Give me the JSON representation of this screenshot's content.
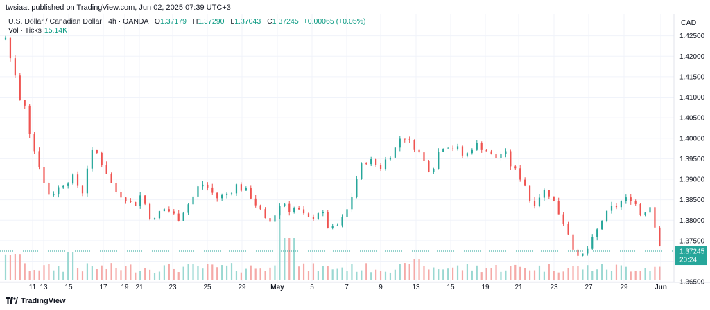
{
  "header": {
    "publish_line": "twsiaat published on TradingView.com, Jun 02, 2025 07:39 UTC+3"
  },
  "legend": {
    "symbol": "U.S. Dollar / Canadian Dollar · 4h · OANDA",
    "o_label": "O",
    "o_value": "1.37179",
    "h_label": "H",
    "h_value": "1.37290",
    "l_label": "L",
    "l_value": "1.37043",
    "c_label": "C",
    "c_value": "1.37245",
    "change": "+0.00065 (+0.05%)",
    "vol_label": "Vol · Ticks",
    "vol_value": "15.14K"
  },
  "price_axis": {
    "currency": "CAD",
    "last_price": "1.37245",
    "countdown": "20:24"
  },
  "footer": {
    "brand": "TradingView"
  },
  "colors": {
    "up": "#26a69a",
    "down": "#ef5350",
    "up_vol": "#9ad8d2",
    "down_vol": "#f5a9a7",
    "grid": "#f0f3fa",
    "last": "#26a69a"
  },
  "chart_data": {
    "type": "candlestick",
    "symbol": "USDCAD",
    "timeframe": "4h",
    "ylim": [
      1.3625,
      1.43
    ],
    "y_ticks": [
      "1.42500",
      "1.42000",
      "1.41500",
      "1.41000",
      "1.40500",
      "1.40000",
      "1.39500",
      "1.39000",
      "1.38500",
      "1.38000",
      "1.37500",
      "1.37000",
      "1.36500"
    ],
    "x_ticks": [
      "11",
      "13",
      "15",
      "17",
      "19",
      "21",
      "23",
      "25",
      "29",
      "May",
      "5",
      "7",
      "9",
      "13",
      "15",
      "19",
      "21",
      "23",
      "27",
      "29",
      "Jun"
    ],
    "close_path": [
      [
        0,
        1.4245
      ],
      [
        3,
        1.4195
      ],
      [
        5,
        1.4185
      ],
      [
        8,
        1.41
      ],
      [
        10,
        1.4095
      ],
      [
        12,
        1.4085
      ],
      [
        14,
        1.4035
      ],
      [
        17,
        1.398
      ],
      [
        20,
        1.395
      ],
      [
        22,
        1.392
      ],
      [
        25,
        1.3875
      ],
      [
        28,
        1.386
      ],
      [
        32,
        1.3875
      ],
      [
        36,
        1.389
      ],
      [
        40,
        1.39
      ],
      [
        43,
        1.3905
      ],
      [
        46,
        1.3875
      ],
      [
        48,
        1.387
      ],
      [
        52,
        1.395
      ],
      [
        55,
        1.397
      ],
      [
        58,
        1.396
      ],
      [
        61,
        1.393
      ],
      [
        64,
        1.391
      ],
      [
        67,
        1.388
      ],
      [
        70,
        1.3865
      ],
      [
        74,
        1.386
      ],
      [
        77,
        1.3845
      ],
      [
        80,
        1.3835
      ],
      [
        84,
        1.386
      ],
      [
        87,
        1.384
      ],
      [
        90,
        1.381
      ],
      [
        93,
        1.38
      ],
      [
        96,
        1.382
      ],
      [
        100,
        1.383
      ],
      [
        104,
        1.3815
      ],
      [
        108,
        1.3805
      ],
      [
        112,
        1.383
      ],
      [
        116,
        1.385
      ],
      [
        120,
        1.388
      ],
      [
        124,
        1.389
      ],
      [
        128,
        1.387
      ],
      [
        132,
        1.3855
      ],
      [
        136,
        1.386
      ],
      [
        140,
        1.387
      ],
      [
        144,
        1.3885
      ],
      [
        148,
        1.3875
      ],
      [
        152,
        1.3865
      ],
      [
        156,
        1.384
      ],
      [
        160,
        1.3815
      ],
      [
        163,
        1.379
      ],
      [
        166,
        1.38
      ],
      [
        170,
        1.383
      ],
      [
        173,
        1.385
      ],
      [
        176,
        1.3825
      ],
      [
        180,
        1.383
      ],
      [
        184,
        1.382
      ],
      [
        188,
        1.38
      ],
      [
        192,
        1.381
      ],
      [
        196,
        1.3825
      ],
      [
        199,
        1.3805
      ],
      [
        202,
        1.3775
      ],
      [
        205,
        1.378
      ],
      [
        208,
        1.379
      ],
      [
        212,
        1.3815
      ],
      [
        215,
        1.3845
      ],
      [
        218,
        1.389
      ],
      [
        221,
        1.3925
      ],
      [
        224,
        1.3945
      ],
      [
        227,
        1.3945
      ],
      [
        230,
        1.394
      ],
      [
        233,
        1.3925
      ],
      [
        236,
        1.394
      ],
      [
        239,
        1.396
      ],
      [
        242,
        1.3965
      ],
      [
        245,
        1.3995
      ],
      [
        248,
        1.401
      ],
      [
        251,
        1.399
      ],
      [
        254,
        1.3985
      ],
      [
        257,
        1.397
      ],
      [
        260,
        1.395
      ],
      [
        263,
        1.393
      ],
      [
        266,
        1.392
      ],
      [
        269,
        1.396
      ],
      [
        272,
        1.398
      ],
      [
        275,
        1.3985
      ],
      [
        278,
        1.3975
      ],
      [
        281,
        1.398
      ],
      [
        284,
        1.396
      ],
      [
        287,
        1.3955
      ],
      [
        290,
        1.3975
      ],
      [
        293,
        1.3985
      ],
      [
        296,
        1.398
      ],
      [
        299,
        1.3975
      ],
      [
        302,
        1.396
      ],
      [
        305,
        1.395
      ],
      [
        308,
        1.396
      ],
      [
        311,
        1.397
      ],
      [
        314,
        1.394
      ],
      [
        317,
        1.3925
      ],
      [
        320,
        1.391
      ],
      [
        323,
        1.3895
      ],
      [
        326,
        1.387
      ],
      [
        328,
        1.383
      ],
      [
        331,
        1.385
      ],
      [
        334,
        1.3865
      ],
      [
        337,
        1.3875
      ],
      [
        340,
        1.386
      ],
      [
        343,
        1.3835
      ],
      [
        346,
        1.381
      ],
      [
        349,
        1.379
      ],
      [
        352,
        1.376
      ],
      [
        355,
        1.3725
      ],
      [
        357,
        1.3705
      ],
      [
        360,
        1.3715
      ],
      [
        363,
        1.373
      ],
      [
        366,
        1.375
      ],
      [
        369,
        1.3775
      ],
      [
        372,
        1.38
      ],
      [
        375,
        1.3815
      ],
      [
        378,
        1.383
      ],
      [
        381,
        1.3835
      ],
      [
        384,
        1.3845
      ],
      [
        387,
        1.385
      ],
      [
        390,
        1.3855
      ],
      [
        393,
        1.384
      ],
      [
        396,
        1.3815
      ],
      [
        399,
        1.3825
      ],
      [
        402,
        1.3835
      ],
      [
        404,
        1.381
      ],
      [
        406,
        1.377
      ],
      [
        408,
        1.374
      ],
      [
        410,
        1.3725
      ]
    ]
  }
}
